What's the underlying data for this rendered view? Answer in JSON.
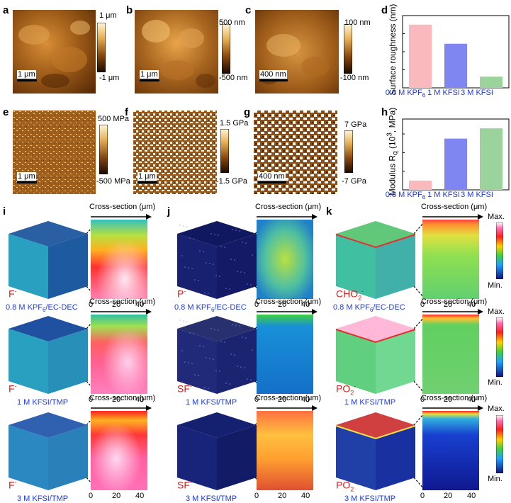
{
  "panel_letters": {
    "a": "a",
    "b": "b",
    "c": "c",
    "d": "d",
    "e": "e",
    "f": "f",
    "g": "g",
    "h": "h",
    "i": "i",
    "j": "j",
    "k": "k"
  },
  "afm_top": [
    {
      "scalebar": "1 μm",
      "cb_top": "1 μm",
      "cb_bot": "-1 μm"
    },
    {
      "scalebar": "1 μm",
      "cb_top": "500 nm",
      "cb_bot": "-500 nm"
    },
    {
      "scalebar": "400 nm",
      "cb_top": "100 nm",
      "cb_bot": "-100 nm"
    }
  ],
  "afm_bottom": [
    {
      "scalebar": "1 μm",
      "cb_top": "500 MPa",
      "cb_bot": "-500 MPa"
    },
    {
      "scalebar": "1 μm",
      "cb_top": "1.5 GPa",
      "cb_bot": "-1.5 GPa"
    },
    {
      "scalebar": "400 nm",
      "cb_top": "7 GPa",
      "cb_bot": "-7 GPa"
    }
  ],
  "chart_data": [
    {
      "type": "bar",
      "panel": "d",
      "categories": [
        "0.8 M KPF6",
        "1 M KFSI",
        "3 M KFSI"
      ],
      "values": [
        175,
        122,
        31
      ],
      "ylabel": "Surface roughness (nm)",
      "ylim": [
        0,
        200
      ],
      "colors": [
        "#f9b9bd",
        "#7f86f2",
        "#9ad39b"
      ]
    },
    {
      "type": "bar",
      "panel": "h",
      "categories": [
        "0.8 M KPF6",
        "1 M KFSI",
        "3 M KFSI"
      ],
      "values": [
        0.5,
        2.75,
        3.3
      ],
      "ylabel": "Modulus R_q (10^3, MPa)",
      "ylim": [
        0,
        3.8
      ],
      "colors": [
        "#f9b9bd",
        "#7f86f2",
        "#9ad39b"
      ]
    }
  ],
  "cat_labels": {
    "kpf6": "0.8 M KPF",
    "kpf6_sub": "6",
    "kfsi1": "1 M KFSI",
    "kfsi3": "3 M KFSI"
  },
  "ylabels": {
    "d": "Surface roughness (nm)",
    "h_pre": "Modulus R",
    "h_sub": "q",
    "h_mid": " (10",
    "h_sup": "3",
    "h_post": ", MPa)"
  },
  "tof": {
    "cross_section": "Cross-section (μm)",
    "ticks": [
      "0",
      "20",
      "40"
    ],
    "max": "Max.",
    "min": "Min.",
    "rows": [
      {
        "label_pre": "0.8 M KPF",
        "label_sub": "6",
        "label_post": "/EC-DEC",
        "ions": [
          "F",
          "P",
          "CHO"
        ],
        "ion_subs": [
          "",
          "",
          "2"
        ]
      },
      {
        "label_pre": "1 M KFSI/TMP",
        "label_sub": "",
        "label_post": "",
        "ions": [
          "F",
          "SF",
          "PO"
        ],
        "ion_subs": [
          "",
          "",
          "2"
        ]
      },
      {
        "label_pre": "3 M KFSI/TMP",
        "label_sub": "",
        "label_post": "",
        "ions": [
          "F",
          "SF",
          "PO"
        ],
        "ion_subs": [
          "",
          "",
          "2"
        ]
      }
    ],
    "charge": "-"
  }
}
